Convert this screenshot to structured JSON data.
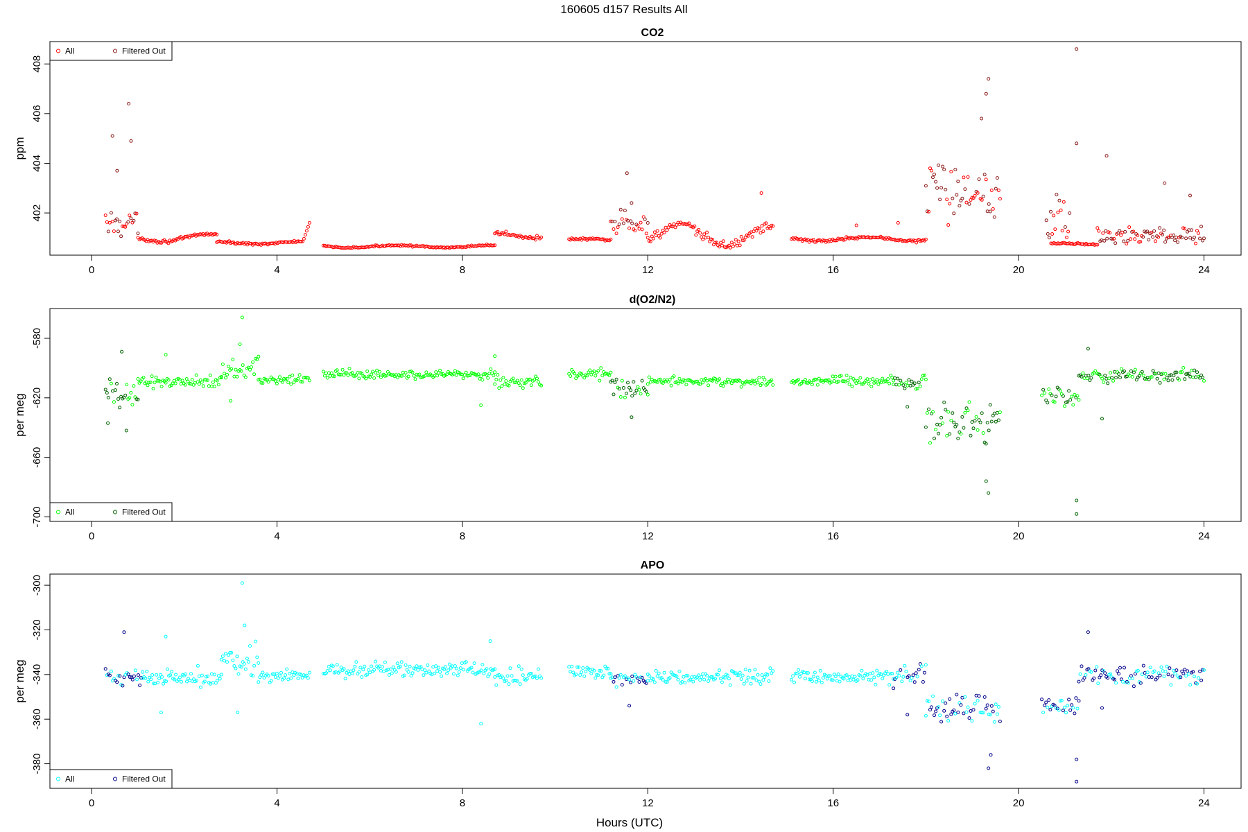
{
  "figure": {
    "title": "160605   d157   Results All",
    "xlabel": "Hours (UTC)"
  },
  "chart_data": [
    {
      "type": "scatter",
      "title": "CO2",
      "xlabel": "Hours (UTC)",
      "ylabel": "ppm",
      "xlim": [
        -0.9,
        24.8
      ],
      "ylim": [
        400.3,
        408.9
      ],
      "x_ticks": [
        0,
        4,
        8,
        12,
        16,
        20,
        24
      ],
      "y_ticks": [
        402,
        404,
        406,
        408
      ],
      "legend": {
        "position": "top-left",
        "entries": [
          "All",
          "Filtered Out"
        ]
      },
      "colors": {
        "all": "#ff0000",
        "filtered": "#8b1a1a"
      },
      "segments": [
        {
          "x": [
            0.3,
            1.0
          ],
          "base": 401.6,
          "noise": 0.6,
          "spikes": [
            [
              0.45,
              405.1
            ],
            [
              0.8,
              406.4
            ],
            [
              0.85,
              404.9
            ],
            [
              0.55,
              403.7
            ]
          ],
          "filtered": true
        },
        {
          "x": [
            1.0,
            2.7
          ],
          "base": 401.0,
          "noise": 0.08,
          "wave": 0.15,
          "filtered": false
        },
        {
          "x": [
            2.7,
            4.7
          ],
          "base": 400.8,
          "noise": 0.05,
          "wave": 0.05,
          "end_rise": 401.6,
          "filtered": false
        },
        {
          "x": [
            5.0,
            8.7
          ],
          "base": 400.65,
          "noise": 0.04,
          "wave": 0.05,
          "filtered": false
        },
        {
          "x": [
            8.7,
            9.7
          ],
          "base": 401.1,
          "noise": 0.1,
          "wave": 0.1,
          "filtered": false
        },
        {
          "x": [
            10.3,
            11.2
          ],
          "base": 400.9,
          "noise": 0.06,
          "wave": 0.05,
          "filtered": false
        },
        {
          "x": [
            11.2,
            12.0
          ],
          "base": 401.6,
          "noise": 0.6,
          "spikes": [
            [
              11.55,
              403.6
            ],
            [
              11.65,
              402.4
            ]
          ],
          "filtered": true
        },
        {
          "x": [
            12.0,
            14.7
          ],
          "base": 401.1,
          "noise": 0.25,
          "wave": 0.4,
          "spikes": [
            [
              14.45,
              402.8
            ]
          ],
          "filtered": false
        },
        {
          "x": [
            15.1,
            18.0
          ],
          "base": 400.95,
          "noise": 0.07,
          "wave": 0.08,
          "spikes": [
            [
              16.5,
              401.5
            ],
            [
              17.4,
              401.6
            ]
          ],
          "filtered": false
        },
        {
          "x": [
            18.0,
            19.6
          ],
          "base": 403.0,
          "noise": 1.5,
          "spikes": [
            [
              19.35,
              407.4
            ],
            [
              19.3,
              406.8
            ],
            [
              19.2,
              405.8
            ]
          ],
          "filtered": true
        },
        {
          "x": [
            20.6,
            21.1
          ],
          "base": 401.8,
          "noise": 1.2,
          "spikes": [
            [
              21.25,
              408.6
            ],
            [
              21.25,
              404.8
            ]
          ],
          "filtered": true
        },
        {
          "x": [
            20.7,
            21.7
          ],
          "base": 400.75,
          "noise": 0.05,
          "wave": 0.03,
          "filtered": false
        },
        {
          "x": [
            21.7,
            24.0
          ],
          "base": 401.1,
          "noise": 0.45,
          "spikes": [
            [
              21.9,
              404.3
            ],
            [
              23.15,
              403.2
            ],
            [
              23.7,
              402.7
            ]
          ],
          "filtered": true
        }
      ]
    },
    {
      "type": "scatter",
      "title": "d(O2/N2)",
      "xlabel": "Hours (UTC)",
      "ylabel": "per meg",
      "xlim": [
        -0.9,
        24.8
      ],
      "ylim": [
        -703,
        -560
      ],
      "x_ticks": [
        0,
        4,
        8,
        12,
        16,
        20,
        24
      ],
      "y_ticks": [
        -700,
        -660,
        -620,
        -580
      ],
      "legend": {
        "position": "bottom-left",
        "entries": [
          "All",
          "Filtered Out"
        ]
      },
      "colors": {
        "all": "#00ff00",
        "filtered": "#006400"
      },
      "segments": [
        {
          "x": [
            0.3,
            1.0
          ],
          "base": -618,
          "noise": 12,
          "spikes": [
            [
              0.35,
              -637
            ],
            [
              0.75,
              -642
            ],
            [
              0.65,
              -589
            ]
          ],
          "filtered": true
        },
        {
          "x": [
            1.0,
            2.8
          ],
          "base": -609,
          "noise": 5,
          "spikes": [
            [
              1.6,
              -591
            ]
          ],
          "filtered": false
        },
        {
          "x": [
            2.8,
            3.6
          ],
          "base": -600,
          "noise": 9,
          "spikes": [
            [
              3.25,
              -566
            ],
            [
              3.2,
              -584
            ],
            [
              3.0,
              -622
            ]
          ],
          "filtered": false
        },
        {
          "x": [
            3.6,
            4.7
          ],
          "base": -608,
          "noise": 4,
          "filtered": false
        },
        {
          "x": [
            5.0,
            8.7
          ],
          "base": -604,
          "noise": 4,
          "spikes": [
            [
              8.4,
              -625
            ],
            [
              8.7,
              -592
            ]
          ],
          "filtered": false
        },
        {
          "x": [
            8.7,
            9.7
          ],
          "base": -609,
          "noise": 5,
          "filtered": false
        },
        {
          "x": [
            10.3,
            11.2
          ],
          "base": -604,
          "noise": 4,
          "filtered": false
        },
        {
          "x": [
            11.2,
            12.0
          ],
          "base": -614,
          "noise": 7,
          "spikes": [
            [
              11.65,
              -633
            ]
          ],
          "filtered": true
        },
        {
          "x": [
            12.0,
            14.7
          ],
          "base": -609,
          "noise": 4,
          "filtered": false
        },
        {
          "x": [
            15.1,
            17.3
          ],
          "base": -609,
          "noise": 4,
          "filtered": false
        },
        {
          "x": [
            17.3,
            18.0
          ],
          "base": -610,
          "noise": 7,
          "spikes": [
            [
              17.6,
              -626
            ]
          ],
          "filtered": true
        },
        {
          "x": [
            18.0,
            19.6
          ],
          "base": -637,
          "noise": 16,
          "spikes": [
            [
              19.35,
              -684
            ],
            [
              19.3,
              -676
            ]
          ],
          "filtered": true
        },
        {
          "x": [
            20.5,
            21.3
          ],
          "base": -618,
          "noise": 10,
          "spikes": [
            [
              21.25,
              -689
            ],
            [
              21.25,
              -698
            ]
          ],
          "filtered": true
        },
        {
          "x": [
            21.3,
            24.0
          ],
          "base": -605,
          "noise": 6,
          "spikes": [
            [
              21.5,
              -587
            ],
            [
              21.8,
              -634
            ]
          ],
          "filtered": true
        }
      ]
    },
    {
      "type": "scatter",
      "title": "APO",
      "xlabel": "Hours (UTC)",
      "ylabel": "per meg",
      "xlim": [
        -0.9,
        24.8
      ],
      "ylim": [
        -391,
        -295
      ],
      "x_ticks": [
        0,
        4,
        8,
        12,
        16,
        20,
        24
      ],
      "y_ticks": [
        -380,
        -360,
        -340,
        -320,
        -300
      ],
      "legend": {
        "position": "bottom-left",
        "entries": [
          "All",
          "Filtered Out"
        ]
      },
      "colors": {
        "all": "#00ffff",
        "filtered": "#00008b"
      },
      "segments": [
        {
          "x": [
            0.3,
            1.1
          ],
          "base": -341,
          "noise": 4,
          "spikes": [
            [
              0.7,
              -321
            ]
          ],
          "filtered": true
        },
        {
          "x": [
            1.1,
            2.8
          ],
          "base": -341,
          "noise": 5,
          "spikes": [
            [
              1.5,
              -357
            ],
            [
              1.6,
              -323
            ]
          ],
          "filtered": false
        },
        {
          "x": [
            2.8,
            3.6
          ],
          "base": -333,
          "noise": 8,
          "spikes": [
            [
              3.25,
              -299
            ],
            [
              3.3,
              -318
            ],
            [
              3.15,
              -357
            ]
          ],
          "filtered": false
        },
        {
          "x": [
            3.6,
            4.7
          ],
          "base": -341,
          "noise": 4,
          "filtered": false
        },
        {
          "x": [
            5.0,
            8.7
          ],
          "base": -338,
          "noise": 4,
          "spikes": [
            [
              8.4,
              -362
            ],
            [
              8.6,
              -325
            ]
          ],
          "filtered": false
        },
        {
          "x": [
            8.7,
            9.7
          ],
          "base": -341,
          "noise": 5,
          "filtered": false
        },
        {
          "x": [
            10.3,
            11.2
          ],
          "base": -339,
          "noise": 4,
          "filtered": false
        },
        {
          "x": [
            11.2,
            12.0
          ],
          "base": -342,
          "noise": 5,
          "spikes": [
            [
              11.6,
              -354
            ]
          ],
          "filtered": true
        },
        {
          "x": [
            12.0,
            14.7
          ],
          "base": -341,
          "noise": 4,
          "filtered": false
        },
        {
          "x": [
            15.1,
            17.3
          ],
          "base": -341,
          "noise": 4,
          "filtered": false
        },
        {
          "x": [
            17.3,
            18.0
          ],
          "base": -340,
          "noise": 6,
          "spikes": [
            [
              17.6,
              -358
            ]
          ],
          "filtered": true
        },
        {
          "x": [
            18.0,
            19.6
          ],
          "base": -355,
          "noise": 10,
          "spikes": [
            [
              19.35,
              -382
            ],
            [
              19.4,
              -376
            ]
          ],
          "filtered": true
        },
        {
          "x": [
            20.5,
            21.3
          ],
          "base": -353,
          "noise": 6,
          "spikes": [
            [
              21.25,
              -388
            ],
            [
              21.25,
              -378
            ]
          ],
          "filtered": true
        },
        {
          "x": [
            21.3,
            24.0
          ],
          "base": -340,
          "noise": 5,
          "spikes": [
            [
              21.5,
              -321
            ],
            [
              21.8,
              -355
            ]
          ],
          "filtered": true
        }
      ]
    }
  ]
}
